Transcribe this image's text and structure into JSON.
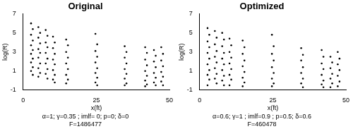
{
  "chart_data": [
    {
      "type": "scatter",
      "title": "Original",
      "annotations": [
        "α=1; γ=0.35 ; imlf= 0; p=0; δ=0",
        "F=1486477"
      ],
      "x_label": "x(ft)",
      "y_label": "log(R)",
      "xlim": [
        0,
        50
      ],
      "xticks": [
        0,
        25,
        50
      ],
      "ylim": [
        -1,
        7
      ],
      "yticks": [
        -1,
        1,
        3,
        5,
        7
      ],
      "grid": false,
      "marker": "circle",
      "color": "#000000",
      "x": [
        2.7,
        3.3,
        2.7,
        3.3,
        2.7,
        3.3,
        2.7,
        3.3,
        2.7,
        3.3,
        2.7,
        3.3,
        5.2,
        5.8,
        5.2,
        5.8,
        5.2,
        5.8,
        5.2,
        5.8,
        5.2,
        5.8,
        5.2,
        7.7,
        8.3,
        7.7,
        8.3,
        7.7,
        8.3,
        7.7,
        8.3,
        7.7,
        8.3,
        10.2,
        10.8,
        10.2,
        10.8,
        10.2,
        10.8,
        10.2,
        10.8,
        10.2,
        10.8,
        14.7,
        15.3,
        14.7,
        15.3,
        14.7,
        15.3,
        14.7,
        15.3,
        14.7,
        24.7,
        25.3,
        24.7,
        25.3,
        24.7,
        25.3,
        24.7,
        25.3,
        24.7,
        25.3,
        34.7,
        35.3,
        34.7,
        35.3,
        34.7,
        35.3,
        34.7,
        35.3,
        34.7,
        41.7,
        42.3,
        41.7,
        42.3,
        41.7,
        42.3,
        41.7,
        42.3,
        41.7,
        44.7,
        45.3,
        44.7,
        45.3,
        44.7,
        45.3,
        44.7,
        45.3,
        47.2,
        47.8,
        47.2,
        47.8,
        47.2,
        47.8,
        47.2,
        47.8
      ],
      "values": [
        6.0,
        5.4,
        4.8,
        4.2,
        3.7,
        3.2,
        2.8,
        2.3,
        1.9,
        1.4,
        1.0,
        0.6,
        5.6,
        5.0,
        4.5,
        3.9,
        3.3,
        2.9,
        2.4,
        1.8,
        1.3,
        0.8,
        0.4,
        5.3,
        4.7,
        4.0,
        3.5,
        2.9,
        2.3,
        1.8,
        1.2,
        0.7,
        0.2,
        4.6,
        4.0,
        3.4,
        2.8,
        2.2,
        1.7,
        1.1,
        0.6,
        0.1,
        -0.2,
        4.3,
        3.7,
        3.0,
        2.4,
        1.8,
        1.2,
        0.6,
        0.1,
        -0.3,
        4.9,
        3.8,
        3.1,
        2.5,
        1.9,
        1.3,
        0.8,
        0.3,
        -0.2,
        -0.5,
        3.6,
        3.0,
        2.4,
        1.8,
        1.2,
        0.7,
        0.2,
        -0.3,
        -0.5,
        3.5,
        2.9,
        2.2,
        1.6,
        1.0,
        0.5,
        0,
        -0.4,
        -0.6,
        3.2,
        2.6,
        2.0,
        1.4,
        0.8,
        0.3,
        -0.2,
        -0.5,
        3.5,
        2.8,
        2.1,
        1.5,
        0.9,
        0.4,
        -0.1,
        -0.5
      ]
    },
    {
      "type": "scatter",
      "title": "Optimized",
      "annotations": [
        "α=0.6; γ=1 ; imlf=0.9 ; p=0.5; δ=0.6",
        "F=460478"
      ],
      "x_label": "x(ft)",
      "y_label": "log(R)",
      "xlim": [
        0,
        50
      ],
      "xticks": [
        0,
        25,
        50
      ],
      "ylim": [
        -1,
        7
      ],
      "yticks": [
        -1,
        1,
        3,
        5,
        7
      ],
      "grid": false,
      "marker": "circle",
      "color": "#000000",
      "x": [
        2.7,
        3.3,
        2.7,
        3.3,
        2.7,
        3.3,
        2.7,
        3.3,
        2.7,
        3.3,
        2.7,
        5.2,
        5.8,
        5.2,
        5.8,
        5.2,
        5.8,
        5.2,
        5.8,
        5.2,
        5.8,
        7.7,
        8.3,
        7.7,
        8.3,
        7.7,
        8.3,
        7.7,
        8.3,
        7.7,
        8.3,
        10.2,
        10.8,
        10.2,
        10.8,
        10.2,
        10.8,
        10.2,
        10.8,
        10.2,
        14.7,
        15.3,
        14.7,
        15.3,
        14.7,
        15.3,
        14.7,
        15.3,
        14.7,
        24.7,
        25.3,
        24.7,
        25.3,
        24.7,
        25.3,
        24.7,
        25.3,
        24.7,
        34.7,
        35.3,
        34.7,
        35.3,
        34.7,
        35.3,
        34.7,
        35.3,
        41.7,
        42.3,
        41.7,
        42.3,
        41.7,
        42.3,
        41.7,
        42.3,
        44.7,
        45.3,
        44.7,
        45.3,
        44.7,
        45.3,
        44.7,
        47.2,
        47.8,
        47.2,
        47.8,
        47.2,
        47.8,
        47.2
      ],
      "values": [
        5.5,
        4.8,
        4.1,
        3.5,
        2.9,
        2.3,
        1.7,
        1.1,
        0.6,
        0.1,
        -0.5,
        5.2,
        4.5,
        3.8,
        3.1,
        2.5,
        1.9,
        1.3,
        0.7,
        0.2,
        -0.3,
        5.0,
        4.3,
        3.6,
        2.9,
        2.3,
        1.7,
        1.1,
        0.5,
        0,
        -0.5,
        4.4,
        3.7,
        3.0,
        2.4,
        1.8,
        1.2,
        0.6,
        0.1,
        -0.5,
        4.2,
        3.5,
        2.8,
        2.1,
        1.5,
        0.9,
        0.3,
        -0.2,
        -0.6,
        4.8,
        3.6,
        2.8,
        2.1,
        1.4,
        0.8,
        0.2,
        -0.3,
        -0.6,
        3.4,
        2.7,
        2.1,
        1.4,
        0.8,
        0.2,
        -0.3,
        -0.7,
        3.2,
        2.5,
        1.8,
        1.2,
        0.6,
        0,
        -0.4,
        -0.7,
        2.5,
        1.9,
        1.3,
        0.7,
        0.2,
        -0.3,
        -0.7,
        3.0,
        2.3,
        1.7,
        1.1,
        0.5,
        -0.1,
        -0.6
      ]
    }
  ]
}
